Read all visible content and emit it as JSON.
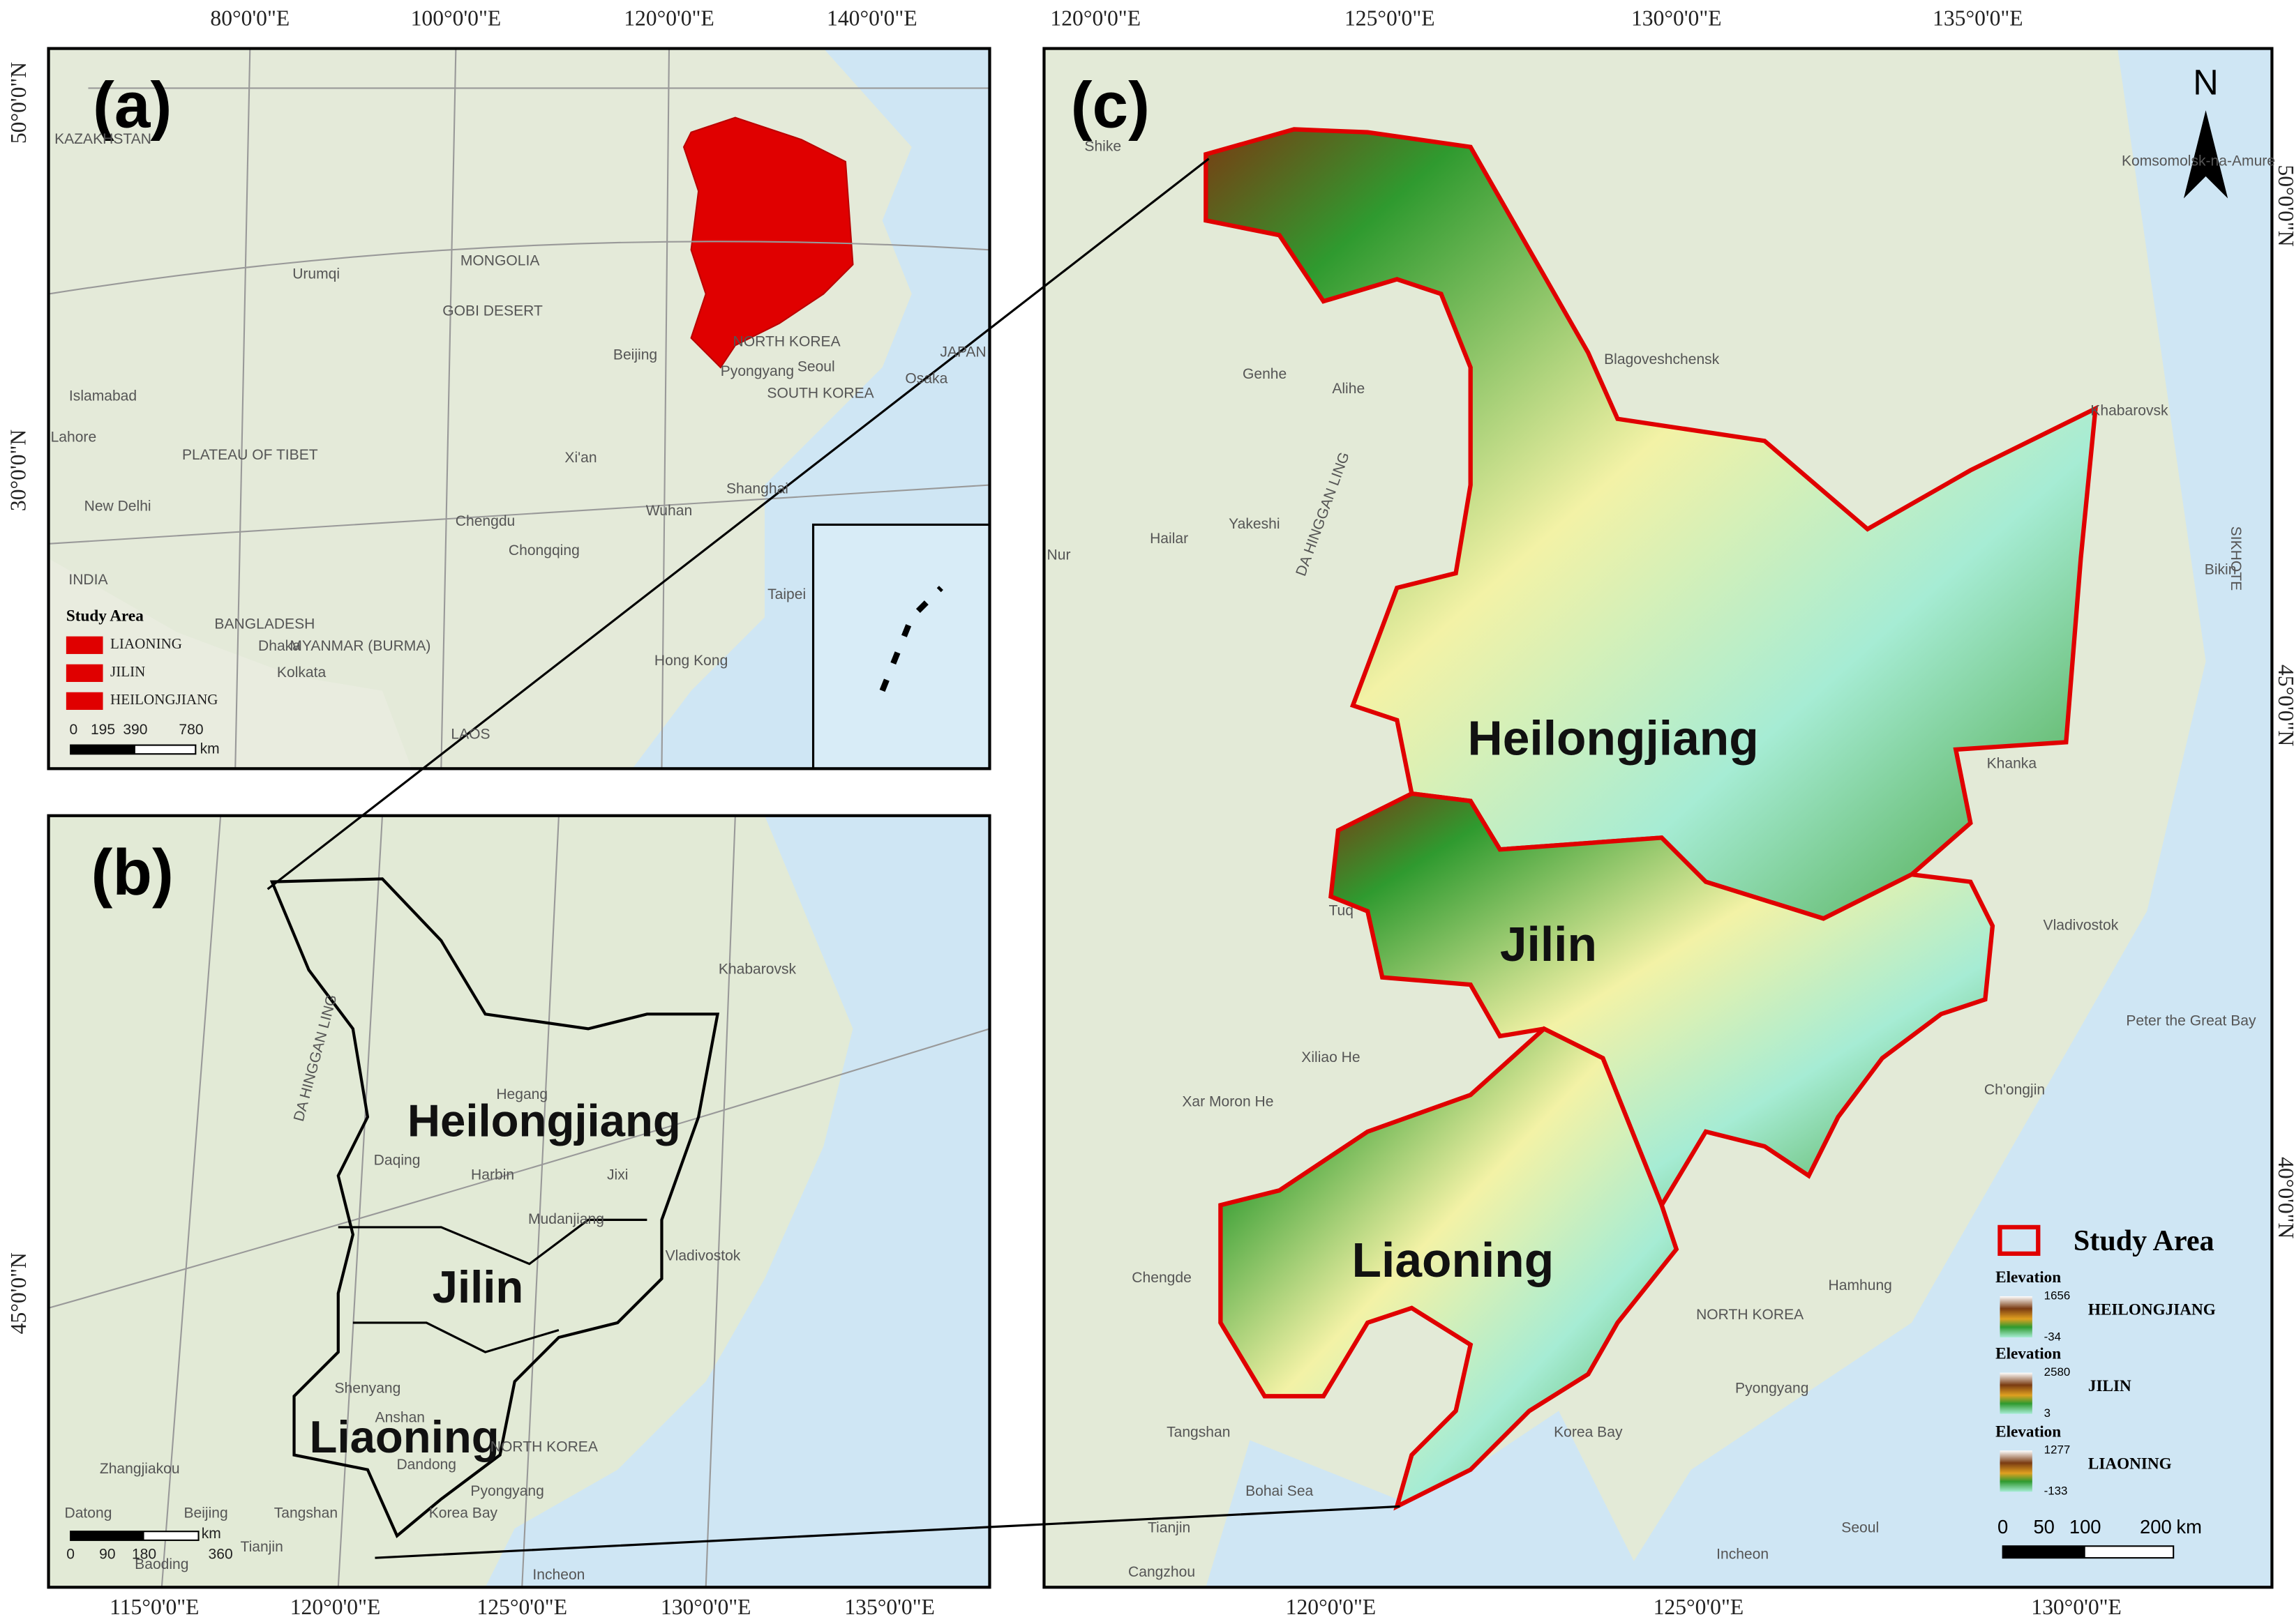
{
  "panel_a": {
    "label": "(a)",
    "lon_ticks": [
      "80°0'0\"E",
      "100°0'0\"E",
      "120°0'0\"E",
      "140°0'0\"E"
    ],
    "lat_ticks": [
      "50°0'0\"N",
      "30°0'0\"N"
    ],
    "places": [
      "KAZAKHSTAN",
      "MONGOLIA",
      "GOBI DESERT",
      "PLATEAU OF TIBET",
      "Urumqi",
      "Beijing",
      "Pyongyang",
      "Seoul",
      "SOUTH KOREA",
      "NORTH KOREA",
      "JAPAN",
      "Osaka",
      "Shanghai",
      "Chengdu",
      "Xi'an",
      "Wuhan",
      "Chongqing",
      "Taipei",
      "Hong Kong",
      "New Delhi",
      "Lahore",
      "Islamabad",
      "Dhaka",
      "BANGLADESH",
      "MYANMAR (BURMA)",
      "INDIA",
      "LAOS",
      "Kolkata"
    ],
    "legend": {
      "title": "Study Area",
      "items": [
        "LIAONING",
        "JILIN",
        "HEILONGJIANG"
      ]
    },
    "scale": {
      "ticks": [
        0,
        195,
        390,
        780
      ],
      "unit": "km"
    }
  },
  "panel_b": {
    "label": "(b)",
    "lon_ticks": [
      "115°0'0\"E",
      "120°0'0\"E",
      "125°0'0\"E",
      "130°0'0\"E",
      "135°0'0\"E"
    ],
    "lat_ticks": [
      "45°0'0\"N"
    ],
    "provinces": [
      "Heilongjiang",
      "Jilin",
      "Liaoning"
    ],
    "places": [
      "Khabarovsk",
      "Hegang",
      "Daqing",
      "Harbin",
      "Jixi",
      "Mudanjiang",
      "Vladivostok",
      "Shenyang",
      "Anshan",
      "Dandong",
      "Pyongyang",
      "NORTH KOREA",
      "Zhangjiakou",
      "Beijing",
      "Tangshan",
      "Tianjin",
      "Baoding",
      "Datong",
      "Incheon",
      "Korea Bay",
      "DA HINGGAN LING"
    ],
    "scale": {
      "ticks": [
        0,
        90,
        180,
        360
      ],
      "unit": "km"
    }
  },
  "panel_c": {
    "label": "(c)",
    "lon_ticks_top": [
      "120°0'0\"E",
      "125°0'0\"E",
      "130°0'0\"E",
      "135°0'0\"E"
    ],
    "lon_ticks_bottom": [
      "120°0'0\"E",
      "125°0'0\"E",
      "130°0'0\"E"
    ],
    "lat_ticks": [
      "50°0'0\"N",
      "45°0'0\"N",
      "40°0'0\"N"
    ],
    "provinces": [
      "Heilongjiang",
      "Jilin",
      "Liaoning"
    ],
    "places": [
      "Blagoveshchensk",
      "Khabarovsk",
      "Genhe",
      "Alihe",
      "Hailar",
      "Yakeshi",
      "Nur",
      "Tuq",
      "Xiliao He",
      "Xar Moron He",
      "Chengde",
      "Tangshan",
      "Bohai Sea",
      "Korea Bay",
      "NORTH KOREA",
      "Hamhung",
      "Pyongyang",
      "Vladivostok",
      "Peter the Great Bay",
      "Ch'ongjin",
      "Incheon",
      "Seoul",
      "Tianjin",
      "Cangzhou",
      "DA HINGGAN LING",
      "SIKHOTE",
      "Shike",
      "Komsomolsk-na-Amure",
      "Khanka",
      "Bikin"
    ],
    "north": "N",
    "legend": {
      "title": "Study Area",
      "elevation": [
        {
          "title": "Elevation",
          "max": 1656,
          "min": -34,
          "name": "HEILONGJIANG"
        },
        {
          "title": "Elevation",
          "max": 2580,
          "min": 3,
          "name": "JILIN"
        },
        {
          "title": "Elevation",
          "max": 1277,
          "min": -133,
          "name": "LIAONING"
        }
      ]
    },
    "scale": {
      "ticks": [
        0,
        50,
        100,
        200
      ],
      "unit": "km"
    }
  }
}
